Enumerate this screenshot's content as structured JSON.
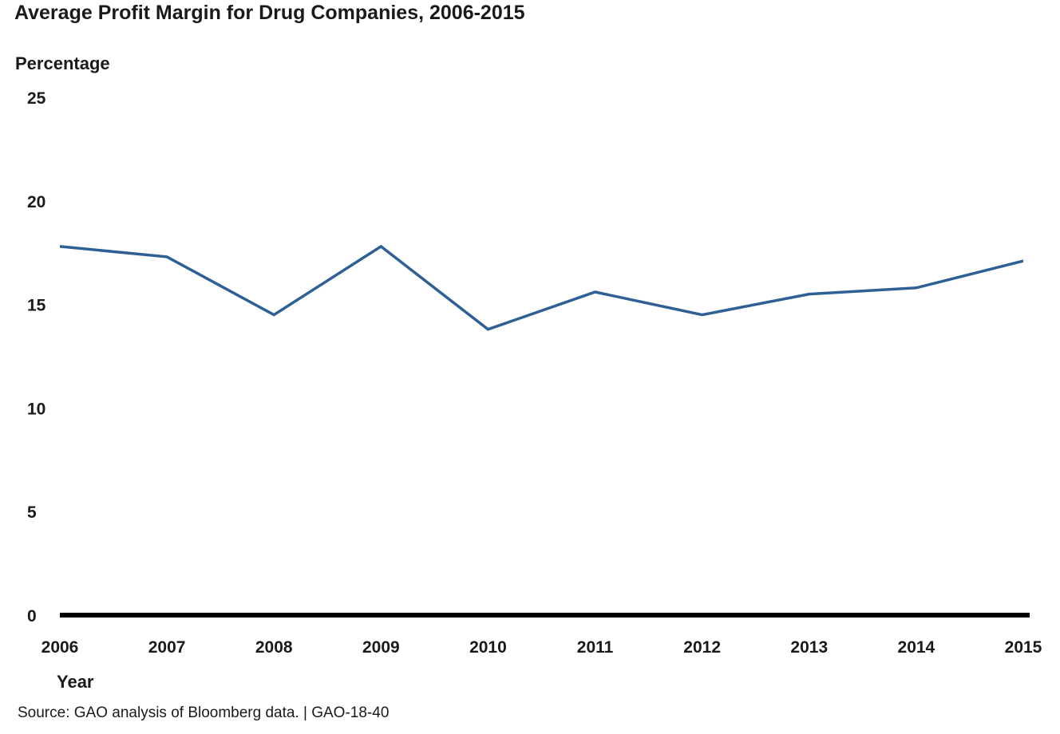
{
  "chart_data": {
    "type": "line",
    "title": "Average Profit Margin for Drug Companies, 2006-2015",
    "ylabel": "Percentage",
    "xlabel": "Year",
    "x": [
      "2006",
      "2007",
      "2008",
      "2009",
      "2010",
      "2011",
      "2012",
      "2013",
      "2014",
      "2015"
    ],
    "series": [
      {
        "values": [
          17.8,
          17.3,
          14.5,
          17.8,
          13.8,
          15.6,
          14.5,
          15.5,
          15.8,
          17.1
        ]
      }
    ],
    "ylim": [
      0,
      25
    ],
    "yticks": [
      0,
      5,
      10,
      15,
      20,
      25
    ],
    "grid": false,
    "legend": "none",
    "line_color": "#2e6096",
    "axis_color": "#000000"
  },
  "source": "Source: GAO analysis of Bloomberg data.  |  GAO-18-40"
}
